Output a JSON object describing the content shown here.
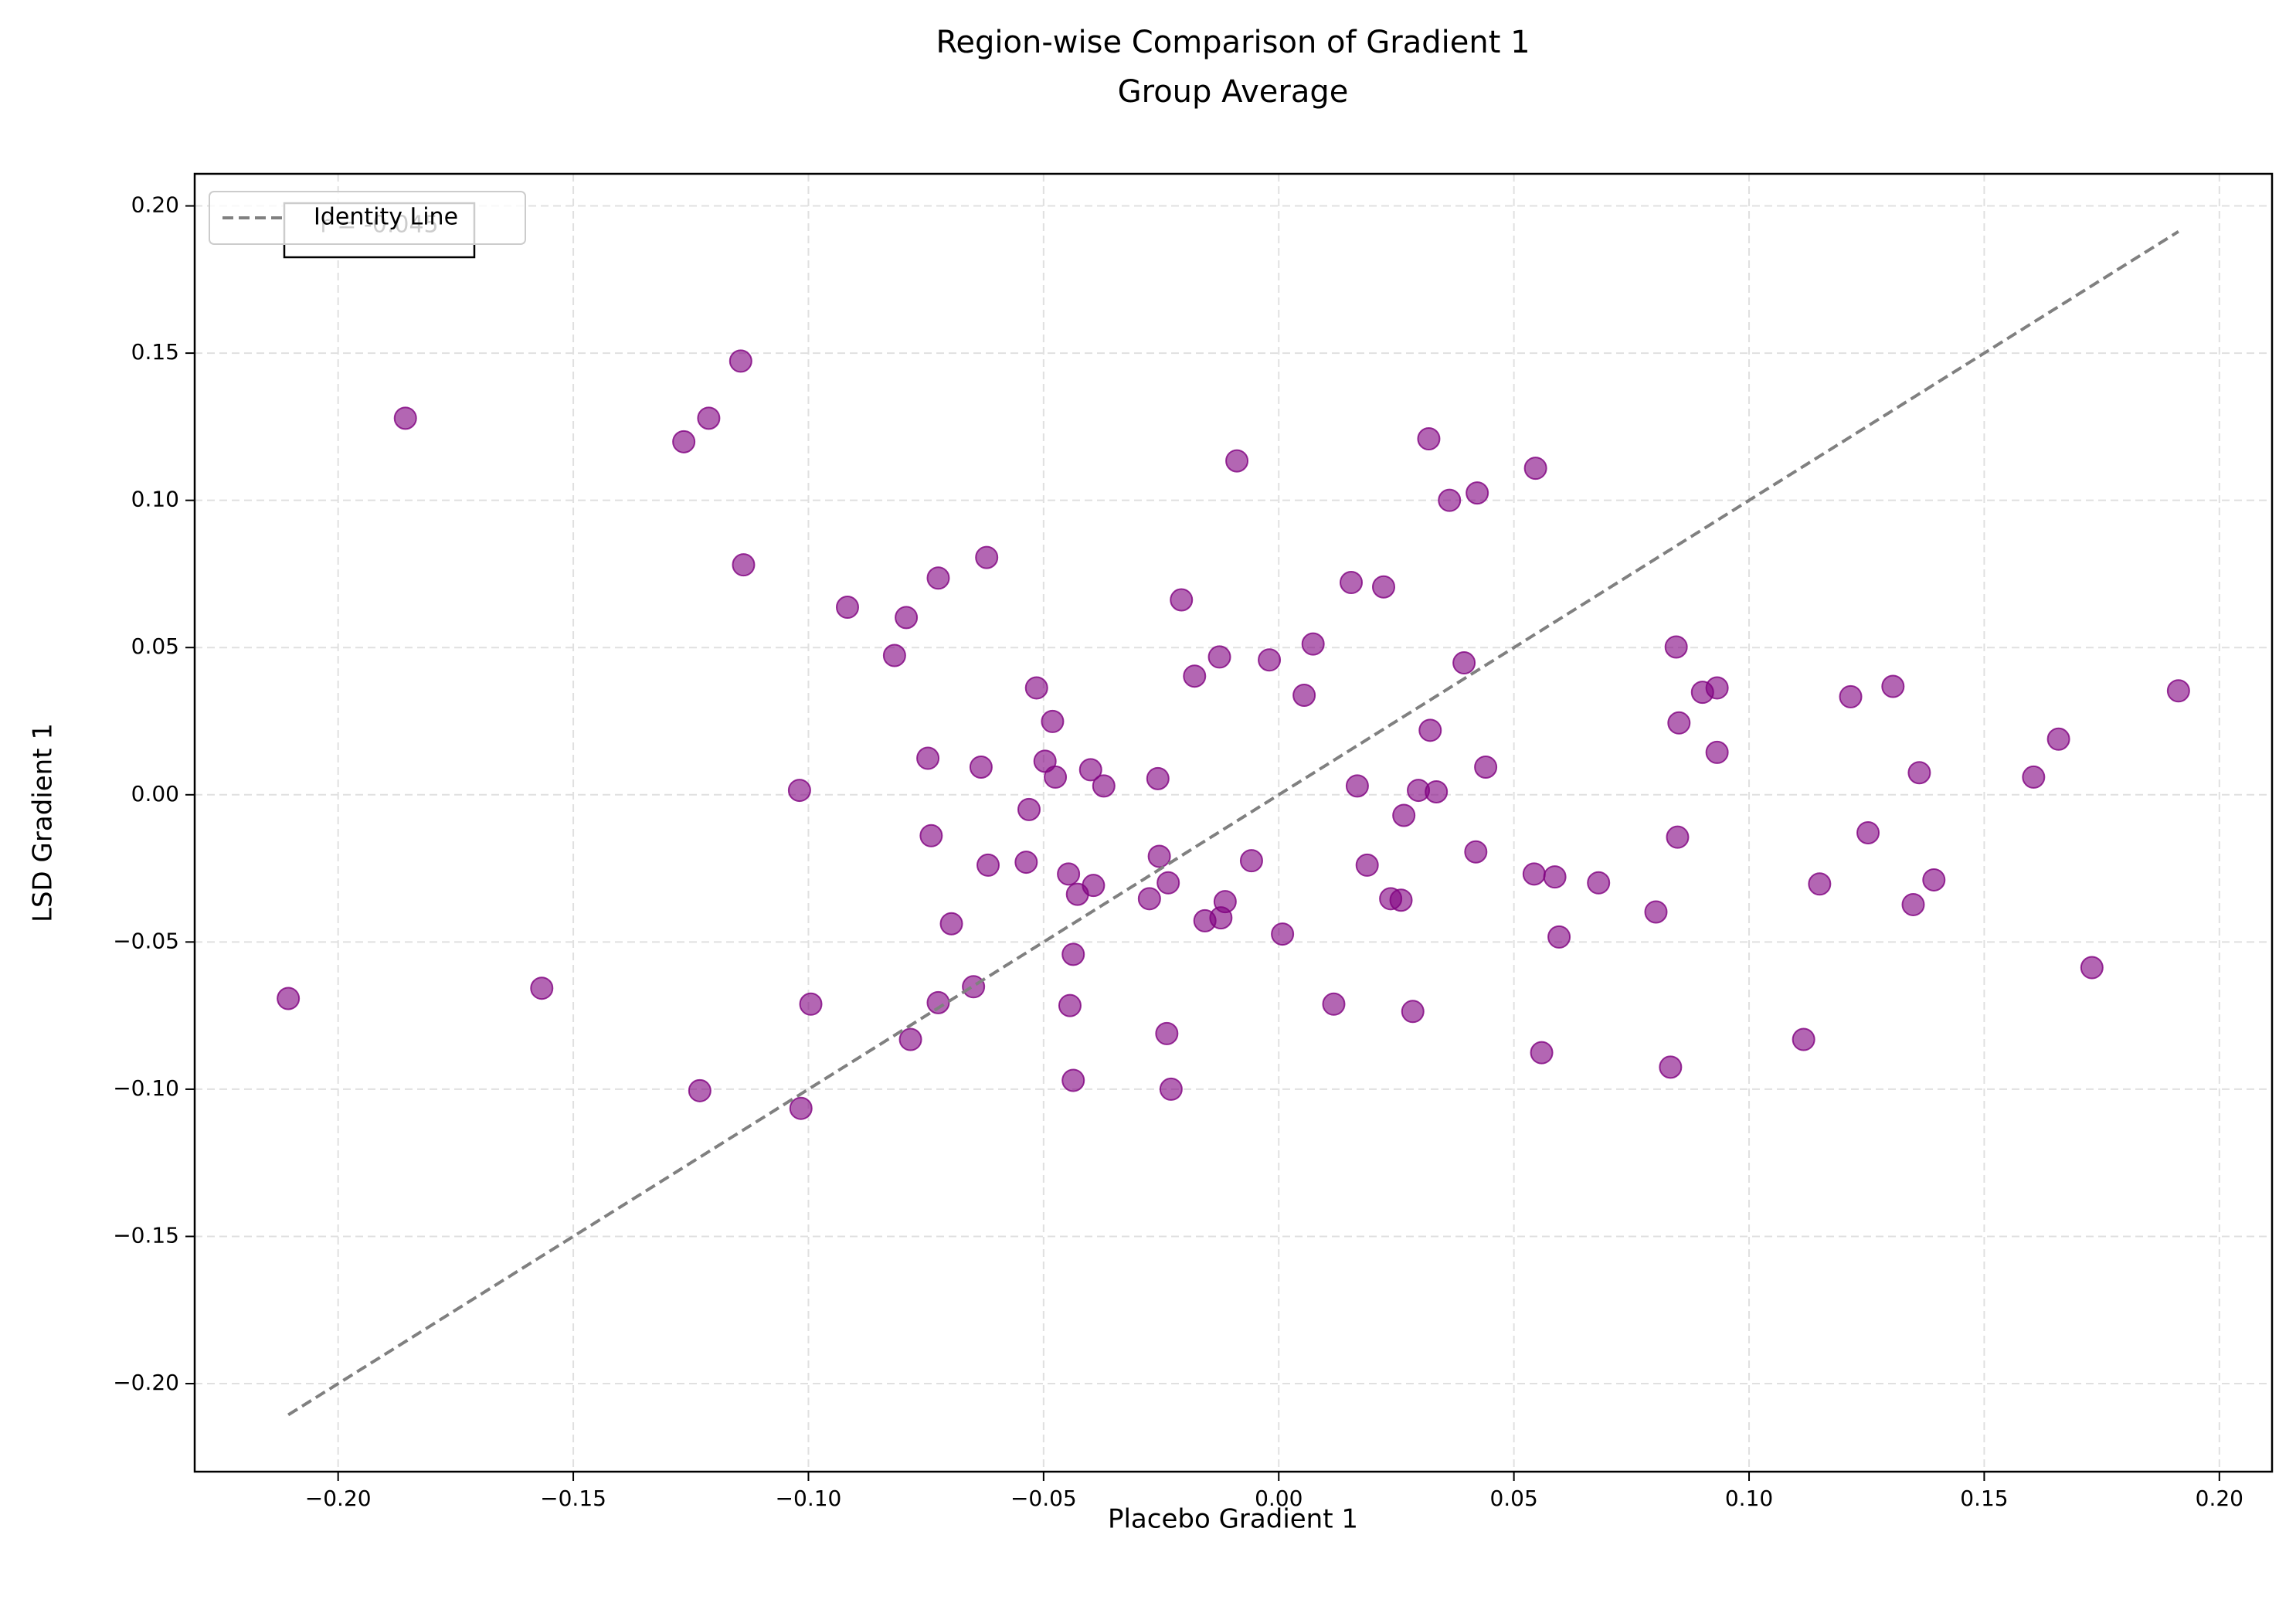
{
  "chart_data": {
    "type": "scatter",
    "title": "Region-wise Comparison of Gradient 1",
    "subtitle": "Group Average",
    "x_label": "Placebo Gradient 1",
    "y_label": "LSD Gradient 1",
    "annotation": "r = -0.045",
    "xlim": [
      -0.2305,
      0.2112
    ],
    "ylim": [
      -0.2299,
      0.2109
    ],
    "xticks": [
      {
        "value": -0.2,
        "label": "−0.20"
      },
      {
        "value": -0.15,
        "label": "−0.15"
      },
      {
        "value": -0.1,
        "label": "−0.10"
      },
      {
        "value": -0.05,
        "label": "−0.05"
      },
      {
        "value": 0,
        "label": "0.00"
      },
      {
        "value": 0.05,
        "label": "0.05"
      },
      {
        "value": 0.1,
        "label": "0.10"
      },
      {
        "value": 0.15,
        "label": "0.15"
      },
      {
        "value": 0.2,
        "label": "0.20"
      }
    ],
    "yticks": [
      {
        "value": -0.2,
        "label": "−0.20"
      },
      {
        "value": -0.15,
        "label": "−0.15"
      },
      {
        "value": -0.1,
        "label": "−0.10"
      },
      {
        "value": -0.05,
        "label": "−0.05"
      },
      {
        "value": 0,
        "label": "0.00"
      },
      {
        "value": 0.05,
        "label": "0.05"
      },
      {
        "value": 0.1,
        "label": "0.10"
      },
      {
        "value": 0.15,
        "label": "0.15"
      },
      {
        "value": 0.2,
        "label": "0.20"
      }
    ],
    "grid": true,
    "legend": "upper left",
    "points": {
      "color": "#800080",
      "x": [
        -0.2106,
        -0.1857,
        -0.1567,
        -0.1265,
        -0.1212,
        -0.1144,
        -0.1138,
        -0.1231,
        -0.1019,
        -0.1016,
        -0.0995,
        -0.0917,
        -0.0817,
        -0.0792,
        -0.0783,
        -0.0724,
        -0.0621,
        -0.0746,
        -0.0739,
        -0.0724,
        -0.0696,
        -0.0649,
        -0.0633,
        -0.0618,
        -0.0537,
        -0.0531,
        -0.0515,
        -0.0497,
        -0.0481,
        -0.0475,
        -0.0447,
        -0.0444,
        -0.0437,
        -0.0437,
        -0.0428,
        -0.04,
        -0.0394,
        -0.0372,
        -0.0275,
        -0.0257,
        -0.0254,
        -0.0238,
        -0.0235,
        -0.0229,
        -0.0207,
        -0.0179,
        -0.0157,
        -0.0126,
        -0.0123,
        -0.0114,
        -0.0089,
        -0.0058,
        -0.002,
        0.0008,
        0.0054,
        0.0073,
        0.0117,
        0.0154,
        0.0167,
        0.0188,
        0.0223,
        0.0238,
        0.026,
        0.0266,
        0.0285,
        0.0297,
        0.0319,
        0.0322,
        0.0335,
        0.0363,
        0.0394,
        0.0419,
        0.0422,
        0.044,
        0.0543,
        0.0546,
        0.0559,
        0.0587,
        0.0596,
        0.068,
        0.0802,
        0.0833,
        0.0845,
        0.0848,
        0.0851,
        0.0901,
        0.0932,
        0.0932,
        0.1116,
        0.115,
        0.1216,
        0.1253,
        0.1306,
        0.1349,
        0.1362,
        0.1393,
        0.1605,
        0.1658,
        0.1729,
        0.1913
      ],
      "y": [
        -0.0692,
        0.1279,
        -0.0657,
        0.1199,
        0.1279,
        0.1473,
        0.0781,
        -0.1005,
        0.0015,
        -0.1065,
        -0.0711,
        0.0637,
        0.0473,
        0.0602,
        -0.0831,
        0.0736,
        0.0806,
        0.0124,
        -0.0139,
        -0.0706,
        -0.0438,
        -0.0652,
        0.0094,
        -0.0239,
        -0.0229,
        -0.005,
        0.0363,
        0.0114,
        0.0249,
        0.006,
        -0.0269,
        -0.0716,
        -0.0542,
        -0.097,
        -0.0338,
        0.0085,
        -0.0308,
        0.003,
        -0.0353,
        0.0055,
        -0.0209,
        -0.0811,
        -0.0299,
        -0.1,
        0.0662,
        0.0403,
        -0.0428,
        0.0468,
        -0.0418,
        -0.0363,
        0.1134,
        -0.0224,
        0.0458,
        -0.0473,
        0.0338,
        0.0512,
        -0.0711,
        0.0721,
        0.003,
        -0.0239,
        0.0706,
        -0.0353,
        -0.0358,
        -0.007,
        -0.0736,
        0.0015,
        0.1209,
        0.0219,
        0.001,
        0.1,
        0.0448,
        -0.0194,
        0.1025,
        0.0094,
        -0.0269,
        0.1109,
        -0.0876,
        -0.0279,
        -0.0483,
        -0.0299,
        -0.0398,
        -0.0925,
        0.0502,
        -0.0144,
        0.0244,
        0.0348,
        0.0363,
        0.0144,
        -0.0831,
        -0.0303,
        0.0333,
        -0.0129,
        0.0368,
        -0.0373,
        0.0075,
        -0.0289,
        0.006,
        0.0189,
        -0.0587,
        0.0353
      ]
    },
    "identity_line": {
      "name": "Identity Line",
      "color": "#808080",
      "x": [
        -0.2106,
        0.1913
      ],
      "y": [
        -0.2106,
        0.1913
      ]
    }
  }
}
